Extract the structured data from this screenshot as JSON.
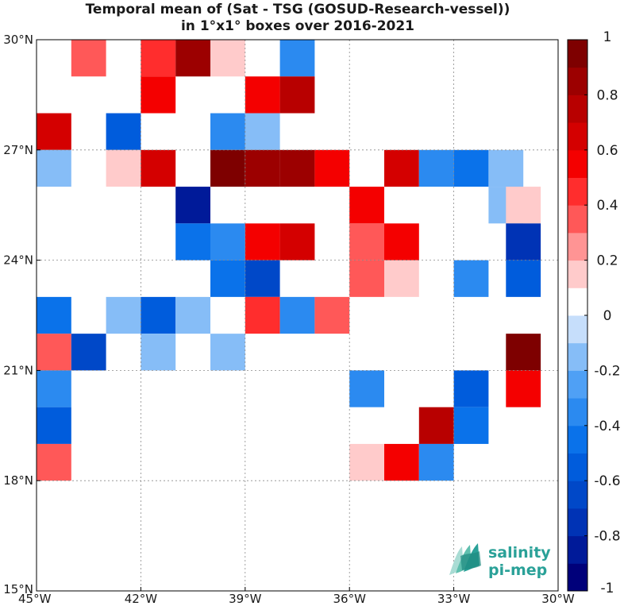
{
  "chart_data": {
    "type": "heatmap",
    "title": [
      "Temporal mean of (Sat - TSG (GOSUD-Research-vessel))",
      "in 1°x1° boxes over 2016-2021"
    ],
    "xlim": [
      -45,
      -30
    ],
    "ylim": [
      15,
      30
    ],
    "grid": true,
    "x_ticks": [
      -45,
      -42,
      -39,
      -36,
      -33,
      -30
    ],
    "x_tick_labels": [
      "45°W",
      "42°W",
      "39°W",
      "36°W",
      "33°W",
      "30°W"
    ],
    "y_ticks": [
      15,
      18,
      21,
      24,
      27,
      30
    ],
    "y_tick_labels": [
      "15°N",
      "18°N",
      "21°N",
      "24°N",
      "27°N",
      "30°N"
    ],
    "colorbar": {
      "range": [
        -1,
        1
      ],
      "levels": 20,
      "ticks": [
        1,
        0.8,
        0.6,
        0.4,
        0.2,
        0,
        -0.2,
        -0.4,
        -0.6,
        -0.8,
        -1
      ],
      "tick_labels": [
        "1",
        "0.8",
        "0.6",
        "0.4",
        "0.2",
        "0",
        "-0.2",
        "-0.4",
        "-0.6",
        "-0.8",
        "-1"
      ],
      "colors": [
        "#00007a",
        "#001a99",
        "#0033b5",
        "#0048c8",
        "#005cdc",
        "#0a72ea",
        "#2b8af0",
        "#4fa0f5",
        "#86bdf7",
        "#c6defb",
        "#ffffff",
        "#ffcbcb",
        "#ff9494",
        "#ff5858",
        "#ff2d2d",
        "#f40000",
        "#d40000",
        "#b80000",
        "#9c0000",
        "#7e0000"
      ]
    },
    "cells": [
      {
        "lon": -43,
        "lat": 29,
        "value": 0.3
      },
      {
        "lon": -41,
        "lat": 29,
        "value": 0.45
      },
      {
        "lon": -40,
        "lat": 29,
        "value": 0.85
      },
      {
        "lon": -39,
        "lat": 29,
        "value": 0.15
      },
      {
        "lon": -37,
        "lat": 29,
        "value": -0.35
      },
      {
        "lon": -41,
        "lat": 28,
        "value": 0.55
      },
      {
        "lon": -38,
        "lat": 28,
        "value": 0.55
      },
      {
        "lon": -37,
        "lat": 28,
        "value": 0.75
      },
      {
        "lon": -44,
        "lat": 27,
        "value": 0.65
      },
      {
        "lon": -42,
        "lat": 27,
        "value": -0.55
      },
      {
        "lon": -39,
        "lat": 27,
        "value": -0.4
      },
      {
        "lon": -38,
        "lat": 27,
        "value": -0.15
      },
      {
        "lon": -45,
        "lat": 26,
        "value": 0.15
      },
      {
        "lon": -44,
        "lat": 26,
        "value": -0.15
      },
      {
        "lon": -42,
        "lat": 26,
        "value": 0.15
      },
      {
        "lon": -41,
        "lat": 26,
        "value": 0.65
      },
      {
        "lon": -39,
        "lat": 26,
        "value": 0.95
      },
      {
        "lon": -38,
        "lat": 26,
        "value": 0.85
      },
      {
        "lon": -37,
        "lat": 26,
        "value": 0.85
      },
      {
        "lon": -36,
        "lat": 26,
        "value": 0.55
      },
      {
        "lon": -34,
        "lat": 26,
        "value": 0.65
      },
      {
        "lon": -33,
        "lat": 26,
        "value": -0.35
      },
      {
        "lon": -32,
        "lat": 26,
        "value": -0.45
      },
      {
        "lon": -31,
        "lat": 26,
        "value": -0.15
      },
      {
        "lon": -45,
        "lat": 25,
        "value": 0.15
      },
      {
        "lon": -40,
        "lat": 25,
        "value": -0.85
      },
      {
        "lon": -35,
        "lat": 25,
        "value": 0.55
      },
      {
        "lon": -31,
        "lat": 25,
        "value": -0.15
      },
      {
        "lon": -30.5,
        "lat": 25,
        "value": 0.15
      },
      {
        "lon": -40,
        "lat": 24,
        "value": -0.45
      },
      {
        "lon": -39,
        "lat": 24,
        "value": -0.35
      },
      {
        "lon": -38,
        "lat": 24,
        "value": 0.55
      },
      {
        "lon": -37,
        "lat": 24,
        "value": 0.65
      },
      {
        "lon": -35,
        "lat": 24,
        "value": 0.3
      },
      {
        "lon": -34,
        "lat": 24,
        "value": 0.55
      },
      {
        "lon": -30.5,
        "lat": 24,
        "value": -0.75
      },
      {
        "lon": -39,
        "lat": 23,
        "value": -0.45
      },
      {
        "lon": -38,
        "lat": 23,
        "value": -0.7
      },
      {
        "lon": -35,
        "lat": 23,
        "value": 0.3
      },
      {
        "lon": -34,
        "lat": 23,
        "value": 0.15
      },
      {
        "lon": -32,
        "lat": 23,
        "value": -0.35
      },
      {
        "lon": -30.5,
        "lat": 23,
        "value": -0.55
      },
      {
        "lon": -45,
        "lat": 22,
        "value": 0.3
      },
      {
        "lon": -44,
        "lat": 22,
        "value": -0.45
      },
      {
        "lon": -42,
        "lat": 22,
        "value": -0.15
      },
      {
        "lon": -41,
        "lat": 22,
        "value": -0.55
      },
      {
        "lon": -40,
        "lat": 22,
        "value": -0.15
      },
      {
        "lon": -38,
        "lat": 22,
        "value": 0.45
      },
      {
        "lon": -37,
        "lat": 22,
        "value": -0.35
      },
      {
        "lon": -36,
        "lat": 22,
        "value": 0.3
      },
      {
        "lon": -45,
        "lat": 21,
        "value": 0.15
      },
      {
        "lon": -44,
        "lat": 21,
        "value": 0.35
      },
      {
        "lon": -43,
        "lat": 21,
        "value": -0.7
      },
      {
        "lon": -41,
        "lat": 21,
        "value": -0.15
      },
      {
        "lon": -39,
        "lat": 21,
        "value": -0.15
      },
      {
        "lon": -30.5,
        "lat": 21,
        "value": 0.95
      },
      {
        "lon": -45,
        "lat": 20,
        "value": 0.65
      },
      {
        "lon": -44,
        "lat": 20,
        "value": -0.35
      },
      {
        "lon": -35,
        "lat": 20,
        "value": -0.35
      },
      {
        "lon": -32,
        "lat": 20,
        "value": -0.55
      },
      {
        "lon": -30.5,
        "lat": 20,
        "value": 0.55
      },
      {
        "lon": -44,
        "lat": 19,
        "value": -0.55
      },
      {
        "lon": -33,
        "lat": 19,
        "value": 0.75
      },
      {
        "lon": -32,
        "lat": 19,
        "value": -0.45
      },
      {
        "lon": -45,
        "lat": 18,
        "value": 0.3
      },
      {
        "lon": -44,
        "lat": 18,
        "value": 0.3
      },
      {
        "lon": -35,
        "lat": 18,
        "value": 0.15
      },
      {
        "lon": -34,
        "lat": 18,
        "value": 0.55
      },
      {
        "lon": -33,
        "lat": 18,
        "value": -0.35
      }
    ]
  },
  "logo": {
    "line1": "salinity",
    "line2": "pi-mep",
    "color": "#2aa198"
  }
}
